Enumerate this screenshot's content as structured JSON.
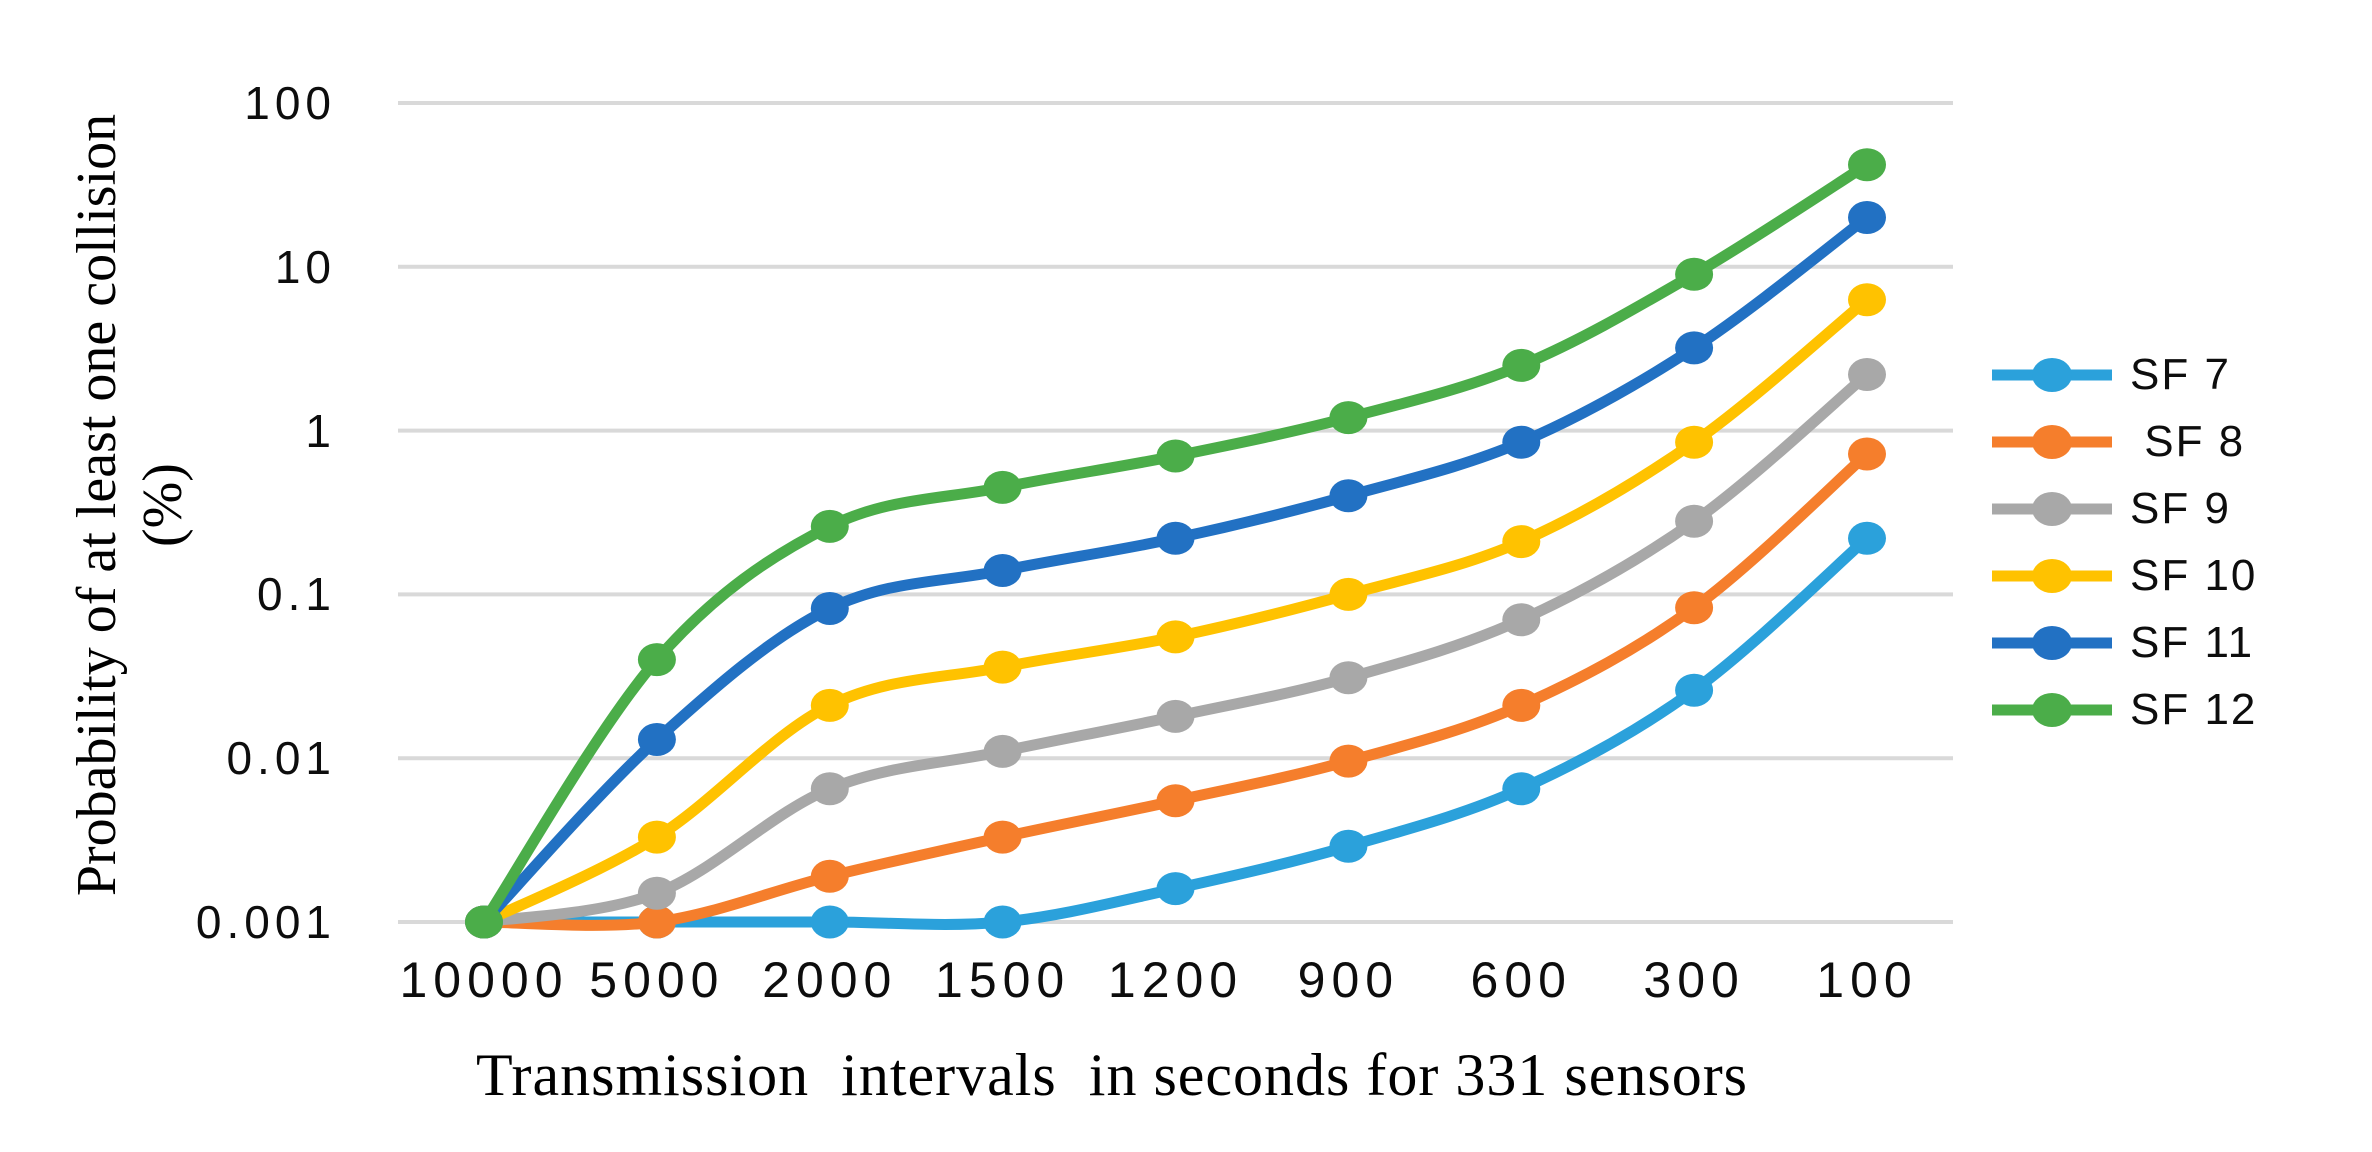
{
  "figure": {
    "background_color": "#FFFFFF",
    "gridline_color": "#D9D9D9"
  },
  "chart_data": {
    "type": "line",
    "title": "",
    "xlabel": "Transmission  intervals  in seconds for 331 sensors",
    "ylabel": "Probability of at least one collision (%)",
    "x_categories": [
      "10000",
      "5000",
      "2000",
      "1500",
      "1200",
      "900",
      "600",
      "300",
      "100"
    ],
    "y_scale": "log",
    "ylim": [
      0.001,
      100
    ],
    "y_tick_labels": [
      "100",
      "10",
      "1",
      "0.1",
      "0.01",
      "0.001"
    ],
    "y_tick_values": [
      100,
      10,
      1,
      0.1,
      0.01,
      0.001
    ],
    "grid": "horizontal",
    "gridline_color": "#D9D9D9",
    "legend_position": "right",
    "marker": "circle",
    "line_style": "smooth",
    "series": [
      {
        "name": "SF 7",
        "color": "#2BA1DB",
        "values": [
          0.001,
          0.001,
          0.001,
          0.001,
          0.0016,
          0.0029,
          0.0065,
          0.026,
          0.22
        ]
      },
      {
        "name": " SF 8",
        "color": "#F57E2C",
        "values": [
          0.001,
          0.001,
          0.0019,
          0.0033,
          0.0055,
          0.0096,
          0.021,
          0.083,
          0.72
        ]
      },
      {
        "name": "SF 9",
        "color": "#A8A8A8",
        "values": [
          0.001,
          0.0015,
          0.0065,
          0.011,
          0.018,
          0.031,
          0.07,
          0.28,
          2.2
        ]
      },
      {
        "name": "SF 10",
        "color": "#FFC200",
        "values": [
          0.001,
          0.0033,
          0.021,
          0.036,
          0.055,
          0.1,
          0.21,
          0.85,
          6.3
        ]
      },
      {
        "name": "SF 11",
        "color": "#2271C3",
        "values": [
          0.001,
          0.013,
          0.082,
          0.14,
          0.22,
          0.4,
          0.85,
          3.2,
          20
        ]
      },
      {
        "name": "SF 12",
        "color": "#4BAD49",
        "values": [
          0.001,
          0.04,
          0.26,
          0.45,
          0.7,
          1.2,
          2.5,
          9,
          42
        ]
      }
    ]
  }
}
